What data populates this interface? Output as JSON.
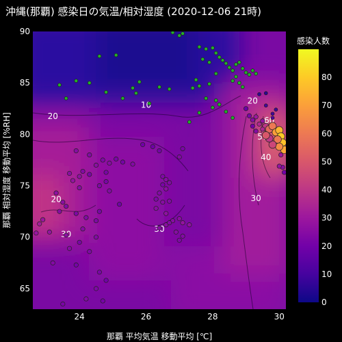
{
  "chart_data": {
    "type": "scatter",
    "title": "沖縄(那覇) 感染日の気温/相対湿度 (2020-12-06 21時)",
    "xlabel": "那覇 平均気温 移動平均 [℃]",
    "ylabel": "那覇 相対湿度 移動平均 [%RH]",
    "xlim": [
      22.6,
      30.2
    ],
    "ylim": [
      63,
      90
    ],
    "x_ticks": [
      24,
      26,
      28,
      30
    ],
    "y_ticks": [
      65,
      70,
      75,
      80,
      85,
      90
    ],
    "colorbar": {
      "title": "感染人数",
      "range": [
        0,
        90
      ],
      "ticks": [
        0,
        10,
        20,
        30,
        40,
        50,
        60,
        70,
        80
      ],
      "colors": [
        "#0d0887",
        "#46039f",
        "#7201a8",
        "#9c179e",
        "#bd3786",
        "#d8576b",
        "#ed7953",
        "#fb9f3a",
        "#fdca26",
        "#f0f921"
      ]
    },
    "background": "contour",
    "contour_labels": [
      {
        "value": "10",
        "x": 26.0,
        "y": 82.6
      },
      {
        "value": "20",
        "x": 23.2,
        "y": 81.5
      },
      {
        "value": "20",
        "x": 23.3,
        "y": 73.4
      },
      {
        "value": "20",
        "x": 29.2,
        "y": 83.0
      },
      {
        "value": "30",
        "x": 23.6,
        "y": 70.0
      },
      {
        "value": "30",
        "x": 26.4,
        "y": 70.5
      },
      {
        "value": "30",
        "x": 29.3,
        "y": 73.5
      },
      {
        "value": "40",
        "x": 29.6,
        "y": 77.5
      },
      {
        "value": "50",
        "x": 29.5,
        "y": 79.5
      },
      {
        "value": "60",
        "x": 29.7,
        "y": 81.1
      }
    ],
    "points": [
      {
        "x": 27.0,
        "y": 89.6,
        "v": 1
      },
      {
        "x": 26.8,
        "y": 89.9,
        "v": 1
      },
      {
        "x": 27.1,
        "y": 89.8,
        "v": 1
      },
      {
        "x": 27.6,
        "y": 88.5,
        "v": 2
      },
      {
        "x": 27.8,
        "y": 88.3,
        "v": 2
      },
      {
        "x": 28.0,
        "y": 88.4,
        "v": 1
      },
      {
        "x": 28.1,
        "y": 87.9,
        "v": 2
      },
      {
        "x": 28.2,
        "y": 87.5,
        "v": 2
      },
      {
        "x": 28.3,
        "y": 87.2,
        "v": 1
      },
      {
        "x": 27.7,
        "y": 87.3,
        "v": 1
      },
      {
        "x": 27.9,
        "y": 87.0,
        "v": 2
      },
      {
        "x": 28.4,
        "y": 86.9,
        "v": 1
      },
      {
        "x": 28.5,
        "y": 86.5,
        "v": 2
      },
      {
        "x": 28.6,
        "y": 86.2,
        "v": 1
      },
      {
        "x": 28.7,
        "y": 86.8,
        "v": 2
      },
      {
        "x": 28.8,
        "y": 87.0,
        "v": 1
      },
      {
        "x": 28.9,
        "y": 86.4,
        "v": 2
      },
      {
        "x": 29.0,
        "y": 86.0,
        "v": 1
      },
      {
        "x": 29.1,
        "y": 85.8,
        "v": 2
      },
      {
        "x": 29.2,
        "y": 86.2,
        "v": 1
      },
      {
        "x": 29.3,
        "y": 85.9,
        "v": 2
      },
      {
        "x": 28.7,
        "y": 85.6,
        "v": 1
      },
      {
        "x": 28.6,
        "y": 85.2,
        "v": 1
      },
      {
        "x": 28.8,
        "y": 85.0,
        "v": 2
      },
      {
        "x": 28.9,
        "y": 84.6,
        "v": 1
      },
      {
        "x": 28.1,
        "y": 85.9,
        "v": 1
      },
      {
        "x": 27.9,
        "y": 84.9,
        "v": 2
      },
      {
        "x": 27.6,
        "y": 84.7,
        "v": 1
      },
      {
        "x": 27.5,
        "y": 85.3,
        "v": 1
      },
      {
        "x": 23.9,
        "y": 85.2,
        "v": 2
      },
      {
        "x": 23.4,
        "y": 84.8,
        "v": 1
      },
      {
        "x": 24.3,
        "y": 85.0,
        "v": 1
      },
      {
        "x": 24.8,
        "y": 84.1,
        "v": 2
      },
      {
        "x": 24.6,
        "y": 87.6,
        "v": 1
      },
      {
        "x": 25.1,
        "y": 87.7,
        "v": 1
      },
      {
        "x": 23.6,
        "y": 83.5,
        "v": 1
      },
      {
        "x": 25.3,
        "y": 83.5,
        "v": 2
      },
      {
        "x": 25.6,
        "y": 84.5,
        "v": 1
      },
      {
        "x": 25.8,
        "y": 85.1,
        "v": 1
      },
      {
        "x": 25.7,
        "y": 84.0,
        "v": 2
      },
      {
        "x": 26.4,
        "y": 84.6,
        "v": 1
      },
      {
        "x": 26.7,
        "y": 84.4,
        "v": 1
      },
      {
        "x": 26.1,
        "y": 83.0,
        "v": 2
      },
      {
        "x": 27.4,
        "y": 84.5,
        "v": 1
      },
      {
        "x": 27.8,
        "y": 83.5,
        "v": 2
      },
      {
        "x": 28.1,
        "y": 83.3,
        "v": 1
      },
      {
        "x": 28.0,
        "y": 82.6,
        "v": 2
      },
      {
        "x": 28.2,
        "y": 82.9,
        "v": 1
      },
      {
        "x": 27.6,
        "y": 82.1,
        "v": 1
      },
      {
        "x": 28.4,
        "y": 82.2,
        "v": 2
      },
      {
        "x": 27.3,
        "y": 81.2,
        "v": 1
      },
      {
        "x": 28.6,
        "y": 81.6,
        "v": 1
      },
      {
        "x": 29.0,
        "y": 82.5,
        "v": 18
      },
      {
        "x": 29.1,
        "y": 81.8,
        "v": 22
      },
      {
        "x": 29.2,
        "y": 81.4,
        "v": 25
      },
      {
        "x": 29.3,
        "y": 81.7,
        "v": 30
      },
      {
        "x": 29.4,
        "y": 81.0,
        "v": 35
      },
      {
        "x": 29.5,
        "y": 81.3,
        "v": 28
      },
      {
        "x": 29.6,
        "y": 80.7,
        "v": 40
      },
      {
        "x": 29.7,
        "y": 80.5,
        "v": 55
      },
      {
        "x": 29.8,
        "y": 80.8,
        "v": 60
      },
      {
        "x": 29.9,
        "y": 80.2,
        "v": 70
      },
      {
        "x": 30.0,
        "y": 80.4,
        "v": 75
      },
      {
        "x": 30.05,
        "y": 79.8,
        "v": 80
      },
      {
        "x": 30.1,
        "y": 79.2,
        "v": 78
      },
      {
        "x": 30.15,
        "y": 78.5,
        "v": 72
      },
      {
        "x": 30.0,
        "y": 78.8,
        "v": 65
      },
      {
        "x": 29.95,
        "y": 79.5,
        "v": 60
      },
      {
        "x": 29.8,
        "y": 79.0,
        "v": 45
      },
      {
        "x": 29.7,
        "y": 79.6,
        "v": 40
      },
      {
        "x": 29.6,
        "y": 79.9,
        "v": 50
      },
      {
        "x": 29.5,
        "y": 80.5,
        "v": 35
      },
      {
        "x": 29.3,
        "y": 80.3,
        "v": 25
      },
      {
        "x": 29.2,
        "y": 80.8,
        "v": 20
      },
      {
        "x": 30.1,
        "y": 76.8,
        "v": 25
      },
      {
        "x": 30.15,
        "y": 76.3,
        "v": 20
      },
      {
        "x": 30.0,
        "y": 76.9,
        "v": 28
      },
      {
        "x": 30.05,
        "y": 78.0,
        "v": 30
      },
      {
        "x": 29.9,
        "y": 82.4,
        "v": 8
      },
      {
        "x": 29.8,
        "y": 81.6,
        "v": 12
      },
      {
        "x": 29.6,
        "y": 82.8,
        "v": 10
      },
      {
        "x": 29.4,
        "y": 83.9,
        "v": 6
      },
      {
        "x": 29.6,
        "y": 84.0,
        "v": 5
      },
      {
        "x": 29.8,
        "y": 82.0,
        "v": 9
      },
      {
        "x": 23.9,
        "y": 78.4,
        "v": 25
      },
      {
        "x": 24.3,
        "y": 78.0,
        "v": 24
      },
      {
        "x": 24.5,
        "y": 77.0,
        "v": 26
      },
      {
        "x": 24.1,
        "y": 76.4,
        "v": 24
      },
      {
        "x": 24.3,
        "y": 76.1,
        "v": 22
      },
      {
        "x": 24.0,
        "y": 75.9,
        "v": 27
      },
      {
        "x": 23.8,
        "y": 75.5,
        "v": 28
      },
      {
        "x": 23.7,
        "y": 76.2,
        "v": 26
      },
      {
        "x": 24.0,
        "y": 74.8,
        "v": 25
      },
      {
        "x": 24.6,
        "y": 75.0,
        "v": 23
      },
      {
        "x": 24.8,
        "y": 75.4,
        "v": 22
      },
      {
        "x": 24.9,
        "y": 74.5,
        "v": 24
      },
      {
        "x": 24.7,
        "y": 77.5,
        "v": 23
      },
      {
        "x": 24.9,
        "y": 77.2,
        "v": 25
      },
      {
        "x": 25.1,
        "y": 77.6,
        "v": 22
      },
      {
        "x": 25.3,
        "y": 77.3,
        "v": 21
      },
      {
        "x": 25.6,
        "y": 77.1,
        "v": 24
      },
      {
        "x": 24.8,
        "y": 76.3,
        "v": 22
      },
      {
        "x": 25.2,
        "y": 73.2,
        "v": 20
      },
      {
        "x": 24.6,
        "y": 72.5,
        "v": 22
      },
      {
        "x": 24.2,
        "y": 71.9,
        "v": 24
      },
      {
        "x": 24.5,
        "y": 71.6,
        "v": 23
      },
      {
        "x": 23.5,
        "y": 73.4,
        "v": 26
      },
      {
        "x": 23.3,
        "y": 74.3,
        "v": 27
      },
      {
        "x": 23.4,
        "y": 72.5,
        "v": 25
      },
      {
        "x": 23.6,
        "y": 73.0,
        "v": 24
      },
      {
        "x": 23.9,
        "y": 72.3,
        "v": 23
      },
      {
        "x": 22.9,
        "y": 71.7,
        "v": 30
      },
      {
        "x": 22.8,
        "y": 71.3,
        "v": 32
      },
      {
        "x": 23.1,
        "y": 70.5,
        "v": 28
      },
      {
        "x": 22.7,
        "y": 70.4,
        "v": 29
      },
      {
        "x": 23.6,
        "y": 70.2,
        "v": 26
      },
      {
        "x": 24.1,
        "y": 70.8,
        "v": 25
      },
      {
        "x": 24.5,
        "y": 70.0,
        "v": 24
      },
      {
        "x": 24.0,
        "y": 69.5,
        "v": 22
      },
      {
        "x": 24.3,
        "y": 68.6,
        "v": 23
      },
      {
        "x": 23.7,
        "y": 68.9,
        "v": 25
      },
      {
        "x": 23.9,
        "y": 67.3,
        "v": 21
      },
      {
        "x": 24.6,
        "y": 66.6,
        "v": 22
      },
      {
        "x": 24.8,
        "y": 65.8,
        "v": 20
      },
      {
        "x": 24.5,
        "y": 65.0,
        "v": 23
      },
      {
        "x": 24.2,
        "y": 64.0,
        "v": 24
      },
      {
        "x": 23.5,
        "y": 63.5,
        "v": 22
      },
      {
        "x": 24.7,
        "y": 63.8,
        "v": 21
      },
      {
        "x": 23.2,
        "y": 67.5,
        "v": 24
      },
      {
        "x": 25.9,
        "y": 79.0,
        "v": 20
      },
      {
        "x": 26.2,
        "y": 78.8,
        "v": 19
      },
      {
        "x": 26.4,
        "y": 78.4,
        "v": 21
      },
      {
        "x": 27.1,
        "y": 78.6,
        "v": 22
      },
      {
        "x": 27.0,
        "y": 77.8,
        "v": 24
      },
      {
        "x": 26.5,
        "y": 75.9,
        "v": 23
      },
      {
        "x": 26.6,
        "y": 75.6,
        "v": 25
      },
      {
        "x": 26.7,
        "y": 75.3,
        "v": 24
      },
      {
        "x": 26.5,
        "y": 75.1,
        "v": 22
      },
      {
        "x": 26.6,
        "y": 74.7,
        "v": 26
      },
      {
        "x": 26.4,
        "y": 74.3,
        "v": 24
      },
      {
        "x": 26.3,
        "y": 73.7,
        "v": 23
      },
      {
        "x": 26.5,
        "y": 73.4,
        "v": 25
      },
      {
        "x": 26.7,
        "y": 73.5,
        "v": 24
      },
      {
        "x": 26.3,
        "y": 72.8,
        "v": 26
      },
      {
        "x": 26.6,
        "y": 72.3,
        "v": 27
      },
      {
        "x": 26.8,
        "y": 71.6,
        "v": 25
      },
      {
        "x": 27.0,
        "y": 71.8,
        "v": 26
      },
      {
        "x": 27.1,
        "y": 71.4,
        "v": 28
      },
      {
        "x": 27.3,
        "y": 71.2,
        "v": 27
      },
      {
        "x": 26.9,
        "y": 70.5,
        "v": 25
      },
      {
        "x": 27.1,
        "y": 70.1,
        "v": 24
      },
      {
        "x": 27.0,
        "y": 69.7,
        "v": 23
      },
      {
        "x": 26.6,
        "y": 71.2,
        "v": 26
      },
      {
        "x": 26.4,
        "y": 70.9,
        "v": 25
      },
      {
        "x": 26.7,
        "y": 71.4,
        "v": 24
      }
    ]
  }
}
